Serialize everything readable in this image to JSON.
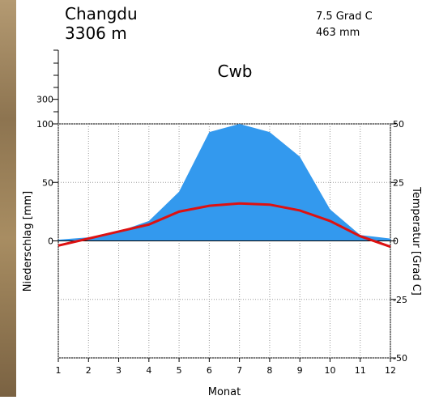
{
  "chart_data": {
    "type": "climate",
    "station": "Changdu",
    "elevation": "3306 m",
    "annual_temperature": "7.5 Grad C",
    "annual_precipitation": "463 mm",
    "climate_class": "Cwb",
    "xlabel": "Monat",
    "ylabel": "Niederschlag [mm]",
    "y2label": "Temperatur [Grad C]",
    "x": [
      1,
      2,
      3,
      4,
      5,
      6,
      7,
      8,
      9,
      10,
      11,
      12
    ],
    "xlim": [
      1,
      12
    ],
    "xticks": [
      1,
      2,
      3,
      4,
      5,
      6,
      7,
      8,
      9,
      10,
      11,
      12
    ],
    "ylim": [
      0,
      700
    ],
    "ybreak": 100,
    "yticks": [
      0,
      50,
      100,
      300
    ],
    "y2lim": [
      -50,
      50
    ],
    "y2ticks": [
      -50,
      -25,
      0,
      25,
      50
    ],
    "grid": true,
    "series": [
      {
        "color": "#3399ee",
        "values": [
          1,
          3,
          8,
          17,
          42,
          93,
          100,
          93,
          72,
          27,
          5,
          2
        ]
      },
      {
        "color": "#dd1111",
        "axis": "y2",
        "values": [
          -2,
          1,
          4,
          7,
          12.5,
          15,
          16,
          15.5,
          13,
          8.5,
          2,
          -2.5
        ]
      }
    ]
  }
}
